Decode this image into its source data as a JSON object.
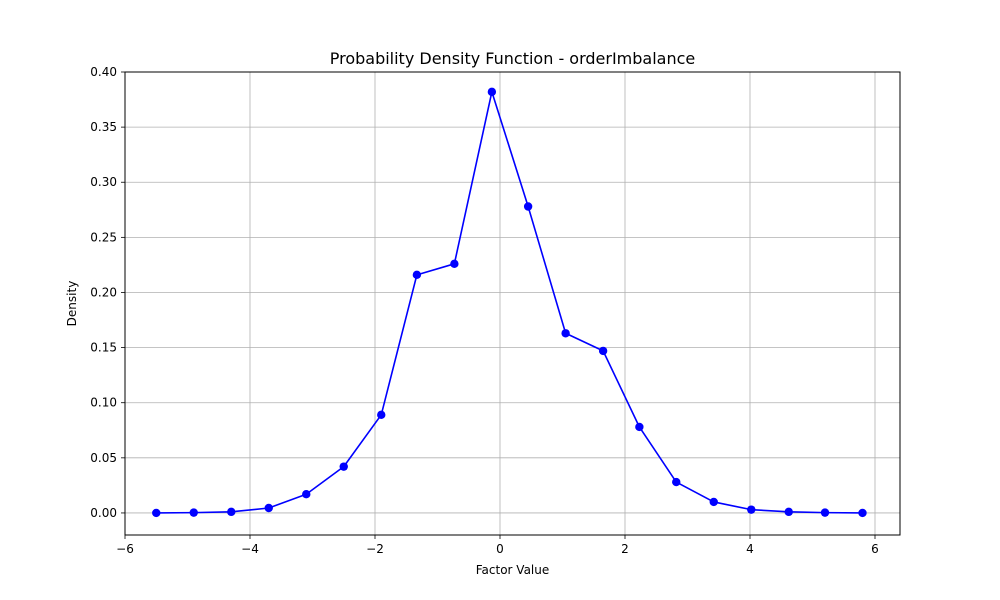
{
  "chart_data": {
    "type": "line",
    "title": "Probability Density Function - orderImbalance",
    "xlabel": "Factor Value",
    "ylabel": "Density",
    "xlim": [
      -6.0,
      6.4
    ],
    "ylim": [
      -0.02,
      0.4
    ],
    "xticks": [
      -6,
      -4,
      -2,
      0,
      2,
      4,
      6
    ],
    "xtick_labels": [
      "−6",
      "−4",
      "−2",
      "0",
      "2",
      "4",
      "6"
    ],
    "yticks": [
      0.0,
      0.05,
      0.1,
      0.15,
      0.2,
      0.25,
      0.3,
      0.35,
      0.4
    ],
    "ytick_labels": [
      "0.00",
      "0.05",
      "0.10",
      "0.15",
      "0.20",
      "0.25",
      "0.30",
      "0.35",
      "0.40"
    ],
    "grid": true,
    "marker": "circle",
    "color": "#0000ff",
    "series": [
      {
        "x": [
          -5.5,
          -4.9,
          -4.3,
          -3.7,
          -3.1,
          -2.5,
          -1.9,
          -1.33,
          -0.73,
          -0.13,
          0.45,
          1.05,
          1.65,
          2.23,
          2.82,
          3.42,
          4.02,
          4.62,
          5.2,
          5.8
        ],
        "y": [
          0.0,
          0.0003,
          0.001,
          0.0045,
          0.017,
          0.042,
          0.089,
          0.216,
          0.226,
          0.382,
          0.278,
          0.163,
          0.147,
          0.078,
          0.028,
          0.01,
          0.003,
          0.001,
          0.0003,
          0.0
        ]
      }
    ]
  }
}
